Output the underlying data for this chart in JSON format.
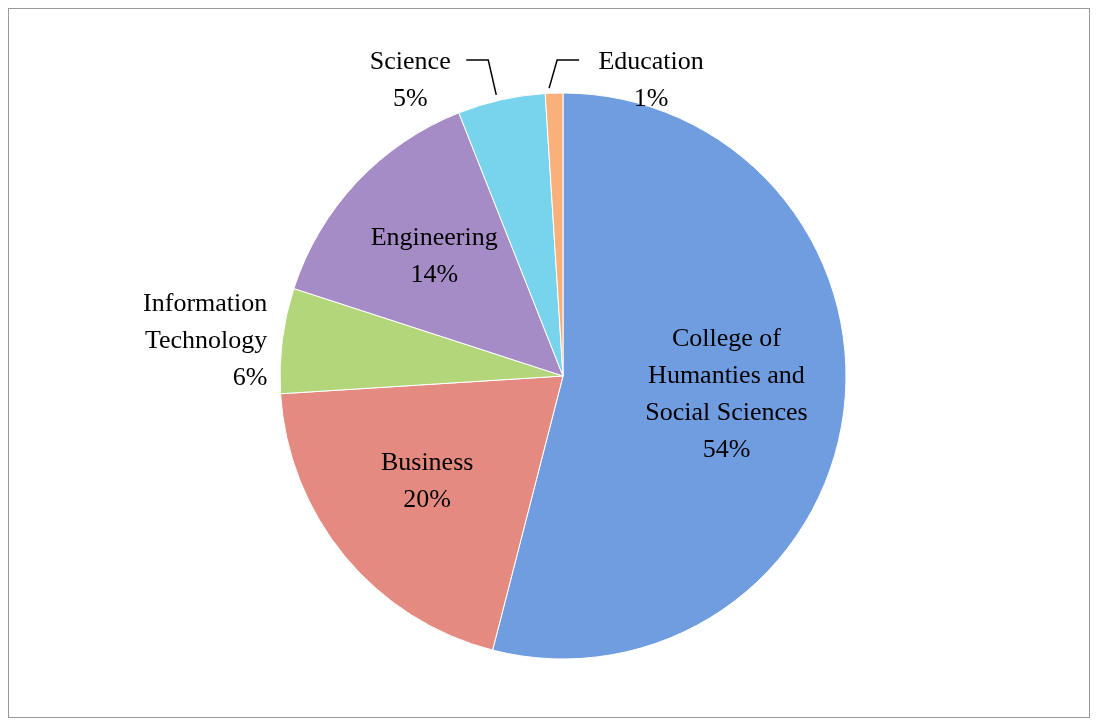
{
  "chart_data": {
    "type": "pie",
    "categories": [
      "College of Humanties and Social Sciences",
      "Business",
      "Information Technology",
      "Engineering",
      "Science",
      "Education"
    ],
    "values": [
      54,
      20,
      6,
      14,
      5,
      1
    ],
    "value_labels": [
      "54%",
      "20%",
      "6%",
      "14%",
      "5%",
      "1%"
    ],
    "colors": [
      "#6f9de0",
      "#e58a80",
      "#b3d67a",
      "#a58cc6",
      "#78d3ec",
      "#f9b07a"
    ],
    "legend": false
  }
}
